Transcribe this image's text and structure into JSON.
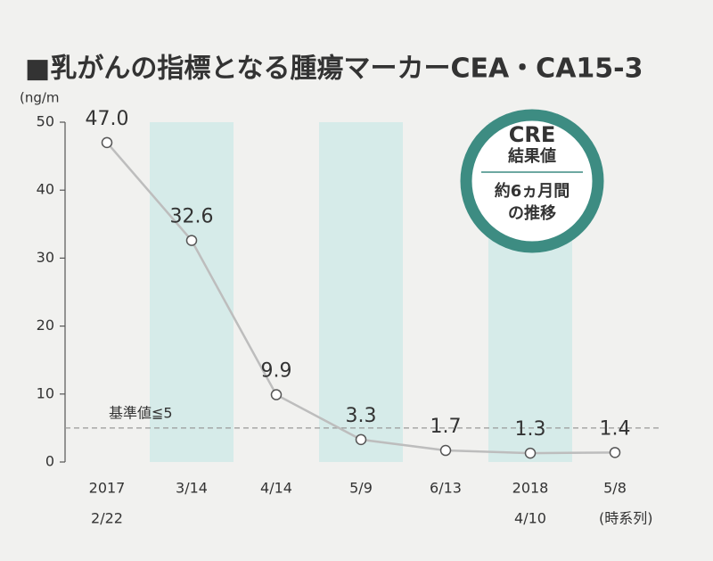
{
  "chart_data": {
    "type": "line",
    "title": "■乳がんの指標となる腫瘍マーカーCEA・CA15-3",
    "y_label": "(ng/m",
    "x_label": "(時系列)",
    "categories": [
      [
        "2017",
        "2/22"
      ],
      [
        "3/14"
      ],
      [
        "4/14"
      ],
      [
        "5/9"
      ],
      [
        "6/13"
      ],
      [
        "2018",
        "4/10"
      ],
      [
        "5/8"
      ]
    ],
    "values": [
      47.0,
      32.6,
      9.9,
      3.3,
      1.7,
      1.3,
      1.4
    ],
    "value_labels": [
      "47.0",
      "32.6",
      "9.9",
      "3.3",
      "1.7",
      "1.3",
      "1.4"
    ],
    "color": "#bdbdbd",
    "ylim": [
      0,
      50
    ],
    "yticks": [
      0,
      10,
      20,
      30,
      40,
      50
    ],
    "reference": {
      "value": 5,
      "label": "基準値≦5"
    },
    "shaded_categories": [
      1,
      3,
      5
    ],
    "shade_color": "#d6ebe9",
    "badge": {
      "lines": [
        "CRE",
        "結果値",
        "約6ヵ月間",
        "の推移"
      ],
      "color": "#3d8c82"
    }
  }
}
